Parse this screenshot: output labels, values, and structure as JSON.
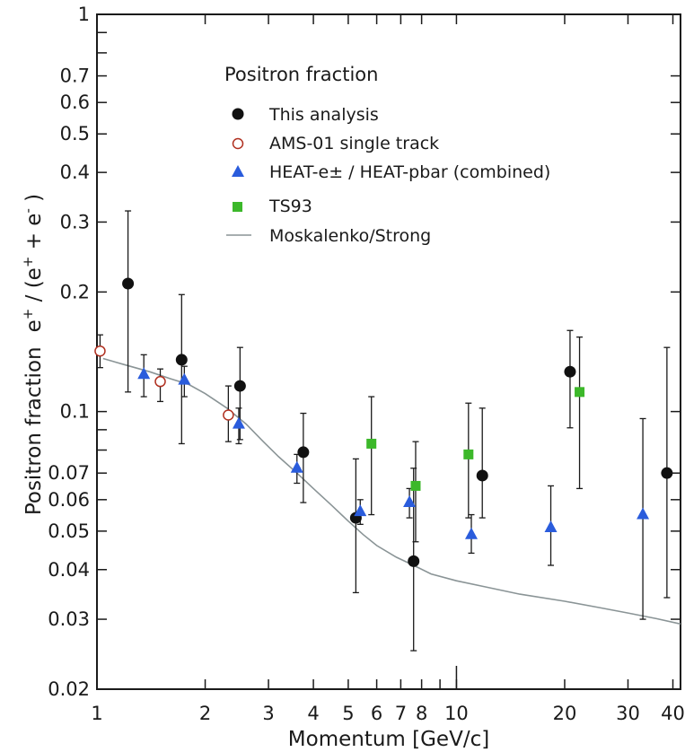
{
  "chart_data": {
    "type": "scatter",
    "title": "",
    "xlabel": "Momentum  [GeV/c]",
    "ylabel": "Positron fraction   e⁺ / (e⁺ + e⁻ )",
    "ylabel_parts": {
      "main": "Positron fraction",
      "sup1": "+",
      "sup2": "+",
      "sup3": "-"
    },
    "xscale": "log",
    "yscale": "log",
    "xlim": [
      1,
      42
    ],
    "ylim": [
      0.02,
      1
    ],
    "x_ticks_labeled": [
      {
        "value": 1,
        "label": "1"
      },
      {
        "value": 2,
        "label": "2"
      },
      {
        "value": 3,
        "label": "3"
      },
      {
        "value": 4,
        "label": "4"
      },
      {
        "value": 5,
        "label": "5"
      },
      {
        "value": 6,
        "label": "6"
      },
      {
        "value": 7,
        "label": "7"
      },
      {
        "value": 8,
        "label": "8"
      },
      {
        "value": 10,
        "label": "10"
      },
      {
        "value": 20,
        "label": "20"
      },
      {
        "value": 30,
        "label": "30"
      },
      {
        "value": 40,
        "label": "40"
      }
    ],
    "x_ticks_minor": [
      9
    ],
    "y_ticks_labeled": [
      {
        "value": 0.02,
        "label": "0.02"
      },
      {
        "value": 0.03,
        "label": "0.03"
      },
      {
        "value": 0.04,
        "label": "0.04"
      },
      {
        "value": 0.05,
        "label": "0.05"
      },
      {
        "value": 0.06,
        "label": "0.06"
      },
      {
        "value": 0.07,
        "label": "0.07"
      },
      {
        "value": 0.1,
        "label": "0.1"
      },
      {
        "value": 0.2,
        "label": "0.2"
      },
      {
        "value": 0.3,
        "label": "0.3"
      },
      {
        "value": 0.4,
        "label": "0.4"
      },
      {
        "value": 0.5,
        "label": "0.5"
      },
      {
        "value": 0.6,
        "label": "0.6"
      },
      {
        "value": 0.7,
        "label": "0.7"
      },
      {
        "value": 1,
        "label": "1"
      }
    ],
    "y_ticks_minor": [
      0.08,
      0.09,
      0.8,
      0.9
    ],
    "legend": {
      "title": "Positron fraction",
      "placement": "top-right",
      "entries": [
        {
          "label": "This analysis",
          "marker": "filled-circle"
        },
        {
          "label": "AMS-01 single track",
          "marker": "open-circle"
        },
        {
          "label": "HEAT-e± / HEAT-pbar (combined)",
          "marker": "triangle"
        },
        {
          "label": "TS93",
          "marker": "square"
        },
        {
          "label": "Moskalenko/Strong",
          "marker": "line"
        }
      ]
    },
    "series": [
      {
        "name": "This analysis",
        "marker": "filled-circle",
        "color": "#111111",
        "points": [
          {
            "x": 1.22,
            "y": 0.21,
            "lo": 0.112,
            "hi": 0.32
          },
          {
            "x": 1.72,
            "y": 0.135,
            "lo": 0.083,
            "hi": 0.197
          },
          {
            "x": 2.5,
            "y": 0.116,
            "lo": 0.085,
            "hi": 0.145
          },
          {
            "x": 3.75,
            "y": 0.079,
            "lo": 0.059,
            "hi": 0.099
          },
          {
            "x": 5.25,
            "y": 0.054,
            "lo": 0.035,
            "hi": 0.076
          },
          {
            "x": 7.6,
            "y": 0.042,
            "lo": 0.025,
            "hi": 0.072
          },
          {
            "x": 11.8,
            "y": 0.069,
            "lo": 0.054,
            "hi": 0.102
          },
          {
            "x": 20.7,
            "y": 0.126,
            "lo": 0.091,
            "hi": 0.16
          },
          {
            "x": 38.5,
            "y": 0.07,
            "lo": 0.034,
            "hi": 0.145
          }
        ]
      },
      {
        "name": "AMS-01 single track",
        "marker": "open-circle",
        "color": "#b03020",
        "points": [
          {
            "x": 1.02,
            "y": 0.142,
            "lo": 0.129,
            "hi": 0.156
          },
          {
            "x": 1.5,
            "y": 0.119,
            "lo": 0.106,
            "hi": 0.128
          },
          {
            "x": 2.32,
            "y": 0.098,
            "lo": 0.084,
            "hi": 0.116
          }
        ]
      },
      {
        "name": "HEAT-e± / HEAT-pbar (combined)",
        "marker": "triangle",
        "color": "#2a5cdc",
        "points": [
          {
            "x": 1.35,
            "y": 0.124,
            "lo": 0.109,
            "hi": 0.139
          },
          {
            "x": 1.75,
            "y": 0.12,
            "lo": 0.109,
            "hi": 0.13
          },
          {
            "x": 2.48,
            "y": 0.093,
            "lo": 0.083,
            "hi": 0.102
          },
          {
            "x": 3.6,
            "y": 0.072,
            "lo": 0.066,
            "hi": 0.078
          },
          {
            "x": 5.4,
            "y": 0.056,
            "lo": 0.052,
            "hi": 0.06
          },
          {
            "x": 7.4,
            "y": 0.059,
            "lo": 0.054,
            "hi": 0.064
          },
          {
            "x": 11,
            "y": 0.049,
            "lo": 0.044,
            "hi": 0.055
          },
          {
            "x": 18.3,
            "y": 0.051,
            "lo": 0.041,
            "hi": 0.065
          },
          {
            "x": 33,
            "y": 0.055,
            "lo": 0.03,
            "hi": 0.096
          }
        ]
      },
      {
        "name": "TS93",
        "marker": "square",
        "color": "#3cb82a",
        "points": [
          {
            "x": 5.8,
            "y": 0.083,
            "lo": 0.055,
            "hi": 0.109
          },
          {
            "x": 7.7,
            "y": 0.065,
            "lo": 0.047,
            "hi": 0.084
          },
          {
            "x": 10.8,
            "y": 0.078,
            "lo": 0.054,
            "hi": 0.105
          },
          {
            "x": 22,
            "y": 0.112,
            "lo": 0.064,
            "hi": 0.154
          }
        ]
      }
    ],
    "model_curve": {
      "name": "Moskalenko/Strong",
      "color": "#8a9496",
      "points": [
        [
          1.04,
          0.136
        ],
        [
          1.2,
          0.131
        ],
        [
          1.4,
          0.126
        ],
        [
          1.6,
          0.121
        ],
        [
          1.8,
          0.117
        ],
        [
          2.0,
          0.111
        ],
        [
          2.3,
          0.102
        ],
        [
          2.6,
          0.093
        ],
        [
          2.9,
          0.084
        ],
        [
          3.2,
          0.077
        ],
        [
          3.6,
          0.07
        ],
        [
          4.0,
          0.064
        ],
        [
          4.5,
          0.058
        ],
        [
          5.0,
          0.053
        ],
        [
          5.5,
          0.049
        ],
        [
          6.0,
          0.046
        ],
        [
          6.8,
          0.043
        ],
        [
          7.6,
          0.041
        ],
        [
          8.5,
          0.039
        ],
        [
          10.0,
          0.0375
        ],
        [
          12,
          0.0362
        ],
        [
          15,
          0.0347
        ],
        [
          20,
          0.0333
        ],
        [
          25,
          0.0321
        ],
        [
          30,
          0.0311
        ],
        [
          36,
          0.0301
        ],
        [
          42,
          0.0292
        ]
      ]
    },
    "colors": {
      "axis": "#1a1a1a",
      "text": "#1a1a1a"
    }
  }
}
